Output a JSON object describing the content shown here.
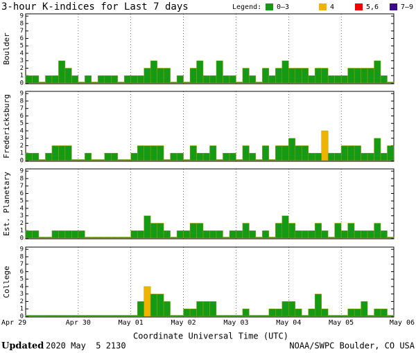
{
  "header": {
    "title": "3-hour K-indices for Last 7 days",
    "legend_label": "Legend:",
    "legend": [
      {
        "label": "0–3",
        "color": "#149a14"
      },
      {
        "label": "4",
        "color": "#f0b400"
      },
      {
        "label": "5,6",
        "color": "#f00000"
      },
      {
        "label": "7–9",
        "color": "#3c0a8c"
      }
    ]
  },
  "x_axis": {
    "label": "Coordinate Universal Time (UTC)",
    "xlim": [
      0,
      7
    ],
    "xticks": [
      {
        "value": 0,
        "label": "Apr 29"
      },
      {
        "value": 1,
        "label": "Apr 30"
      },
      {
        "value": 2,
        "label": "May 01"
      },
      {
        "value": 3,
        "label": "May 02"
      },
      {
        "value": 4,
        "label": "May 03"
      },
      {
        "value": 5,
        "label": "May 04"
      },
      {
        "value": 6,
        "label": "May 05"
      },
      {
        "value": 7,
        "label": "May 06"
      }
    ]
  },
  "chart_data": [
    {
      "type": "bar",
      "ylabel": "Boulder",
      "ylim": [
        0,
        9.3
      ],
      "yticks": [
        0,
        1,
        2,
        3,
        4,
        5,
        6,
        7,
        8,
        9
      ],
      "values": [
        1,
        1,
        0,
        1,
        1,
        3,
        2,
        1,
        0,
        1,
        0,
        1,
        1,
        1,
        0,
        1,
        1,
        1,
        2,
        3,
        2,
        2,
        0,
        1,
        0,
        2,
        3,
        1,
        1,
        3,
        1,
        1,
        0,
        2,
        1,
        0,
        2,
        1,
        2,
        3,
        2,
        2,
        2,
        1,
        2,
        2,
        1,
        1,
        1,
        2,
        2,
        2,
        2,
        3,
        1,
        0
      ]
    },
    {
      "type": "bar",
      "ylabel": "Fredericksburg",
      "ylim": [
        0,
        9.3
      ],
      "yticks": [
        0,
        1,
        2,
        3,
        4,
        5,
        6,
        7,
        8,
        9
      ],
      "values": [
        1,
        1,
        0,
        1,
        2,
        2,
        2,
        0,
        0,
        1,
        0,
        0,
        1,
        1,
        0,
        0,
        1,
        2,
        2,
        2,
        2,
        0,
        1,
        1,
        0,
        2,
        1,
        1,
        2,
        0,
        1,
        1,
        0,
        2,
        1,
        0,
        2,
        0,
        2,
        2,
        3,
        2,
        2,
        1,
        1,
        4,
        1,
        1,
        2,
        2,
        2,
        1,
        1,
        3,
        1,
        2
      ]
    },
    {
      "type": "bar",
      "ylabel": "Est. Planetary",
      "ylim": [
        0,
        9.3
      ],
      "yticks": [
        0,
        1,
        2,
        3,
        4,
        5,
        6,
        7,
        8,
        9
      ],
      "values": [
        1,
        1,
        0,
        0,
        1,
        1,
        1,
        1,
        1,
        0,
        0,
        0,
        0,
        0,
        0,
        0,
        1,
        1,
        3,
        2,
        2,
        1,
        0,
        1,
        1,
        2,
        2,
        1,
        1,
        1,
        0,
        1,
        1,
        2,
        1,
        0,
        1,
        0,
        2,
        3,
        2,
        1,
        1,
        1,
        2,
        1,
        0,
        2,
        1,
        2,
        1,
        1,
        1,
        2,
        1,
        0
      ]
    },
    {
      "type": "bar",
      "ylabel": "College",
      "ylim": [
        0,
        9.3
      ],
      "yticks": [
        0,
        1,
        2,
        3,
        4,
        5,
        6,
        7,
        8,
        9
      ],
      "values": [
        0,
        0,
        0,
        0,
        0,
        0,
        0,
        0,
        0,
        0,
        0,
        0,
        0,
        0,
        0,
        0,
        0,
        2,
        4,
        3,
        3,
        2,
        0,
        0,
        1,
        1,
        2,
        2,
        2,
        0,
        0,
        0,
        0,
        1,
        0,
        0,
        0,
        1,
        1,
        2,
        2,
        1,
        0,
        1,
        3,
        1,
        0,
        0,
        0,
        1,
        1,
        2,
        0,
        1,
        1,
        0
      ]
    }
  ],
  "footer": {
    "updated_label": "Updated",
    "timestamp": "2020 May  5 2130",
    "source": "NOAA/SWPC Boulder, CO USA"
  }
}
